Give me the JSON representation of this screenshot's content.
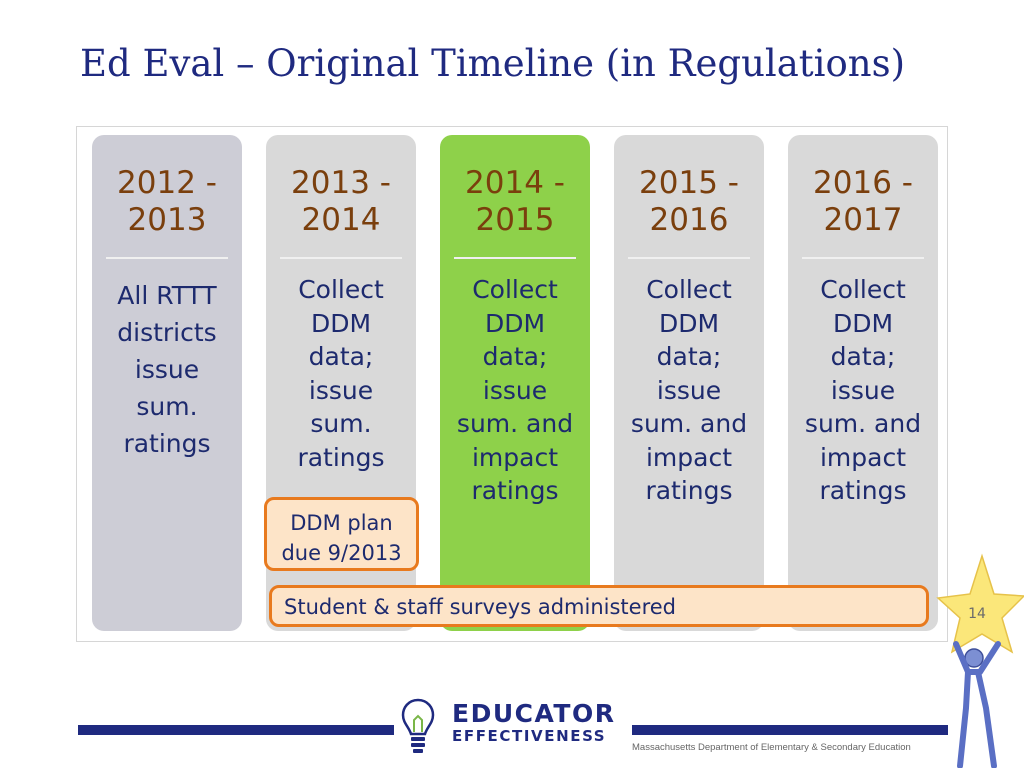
{
  "slide": {
    "title": "Ed Eval – Original Timeline (in Regulations)",
    "page_number": "14"
  },
  "columns": [
    {
      "year": "2012 -\n2013",
      "text": "All RTTT\ndistricts\nissue\nsum.\nratings"
    },
    {
      "year": "2013 -\n2014",
      "text": "Collect\nDDM\ndata;\nissue\nsum.\nratings"
    },
    {
      "year": "2014 -\n2015",
      "text": "Collect\nDDM\ndata;\nissue\nsum. and\nimpact\nratings"
    },
    {
      "year": "2015 -\n2016",
      "text": "Collect\nDDM\ndata;\nissue\nsum. and\nimpact\nratings"
    },
    {
      "year": "2016 -\n2017",
      "text": "Collect\nDDM\ndata;\nissue\nsum. and\nimpact\nratings"
    }
  ],
  "callouts": {
    "ddm_plan": "DDM plan\ndue 9/2013",
    "surveys": "Student & staff surveys administered"
  },
  "footer": {
    "logo_line1": "EDUCATOR",
    "logo_line2": "EFFECTIVENESS",
    "organization": "Massachusetts Department of Elementary & Secondary  Education"
  },
  "colors": {
    "title": "#1f2a80",
    "year_text": "#7a3f0d",
    "body_text": "#1d2a6e",
    "column_gray": "#d9d9d9",
    "column_active": "#8ed14a",
    "callout_border": "#e87a1e",
    "callout_fill": "#fde4c8",
    "star": "#fbe77a"
  },
  "icons": [
    "lightbulb-icon",
    "star-person-icon"
  ]
}
